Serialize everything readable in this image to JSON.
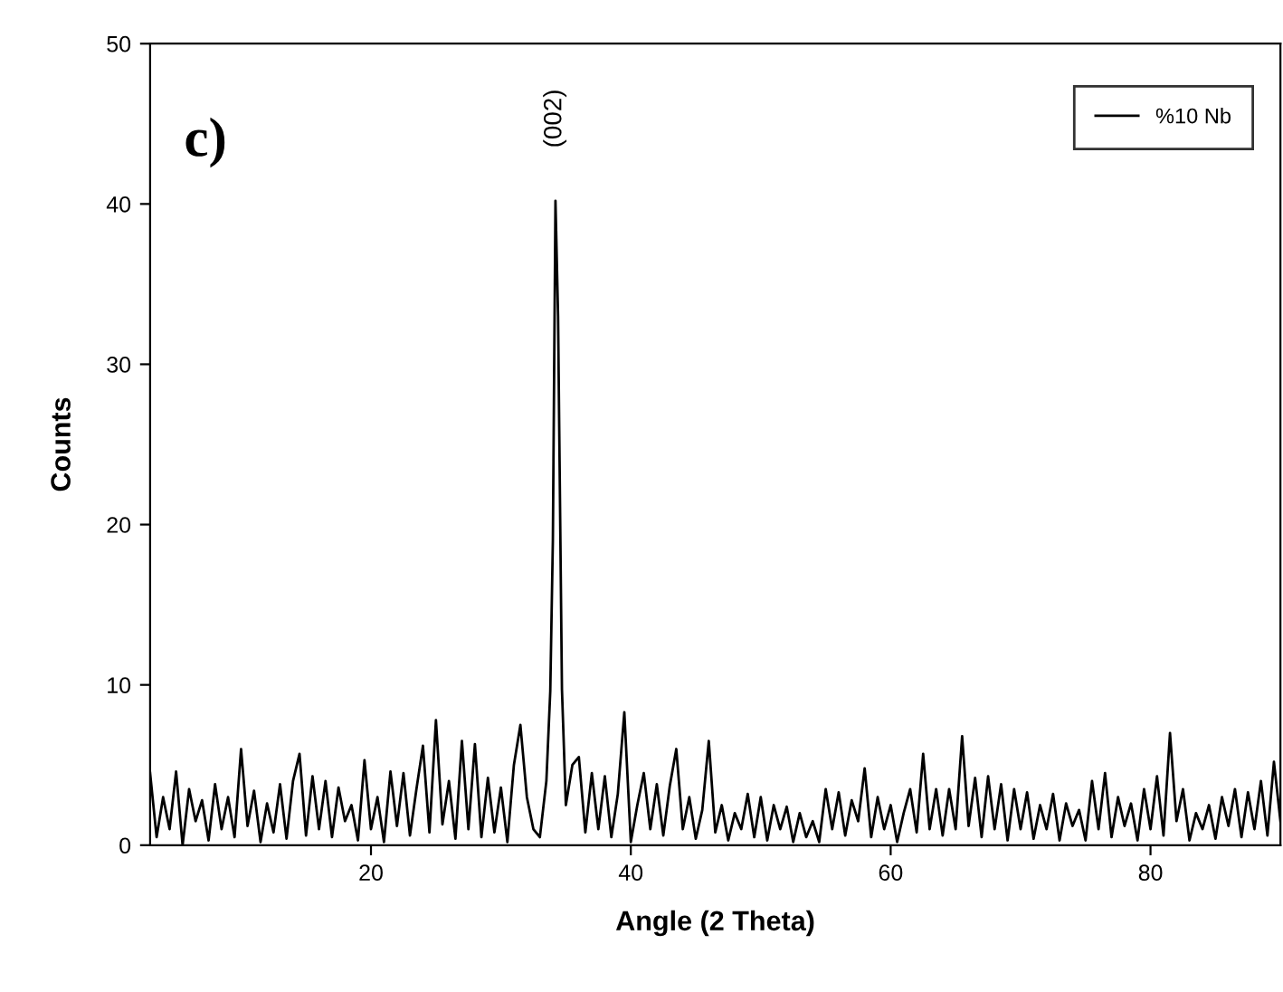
{
  "chart_data": {
    "type": "line",
    "xlabel": "Angle (2 Theta)",
    "ylabel": "Counts",
    "annotations": [
      "c)",
      "(002)"
    ],
    "xlim": [
      3,
      90
    ],
    "ylim": [
      0,
      50
    ],
    "xticks": [
      20,
      40,
      60,
      80
    ],
    "yticks": [
      0,
      10,
      20,
      30,
      40,
      50
    ],
    "grid": false,
    "legend": "top right",
    "marker": "none",
    "line_style": "solid",
    "series": [
      {
        "name": "%10 Nb",
        "color": "#000000",
        "x": [
          3,
          3.5,
          4,
          4.5,
          5,
          5.5,
          6,
          6.5,
          7,
          7.5,
          8,
          8.5,
          9,
          9.5,
          10,
          10.5,
          11,
          11.5,
          12,
          12.5,
          13,
          13.5,
          14,
          14.5,
          15,
          15.5,
          16,
          16.5,
          17,
          17.5,
          18,
          18.5,
          19,
          19.5,
          20,
          20.5,
          21,
          21.5,
          22,
          22.5,
          23,
          23.5,
          24,
          24.5,
          25,
          25.5,
          26,
          26.5,
          27,
          27.5,
          28,
          28.5,
          29,
          29.5,
          30,
          30.5,
          31,
          31.5,
          32,
          32.5,
          33,
          33.5,
          33.8,
          34.0,
          34.2,
          34.4,
          34.7,
          35,
          35.5,
          36,
          36.5,
          37,
          37.5,
          38,
          38.5,
          39,
          39.5,
          40,
          40.5,
          41,
          41.5,
          42,
          42.5,
          43,
          43.5,
          44,
          44.5,
          45,
          45.5,
          46,
          46.5,
          47,
          47.5,
          48,
          48.5,
          49,
          49.5,
          50,
          50.5,
          51,
          51.5,
          52,
          52.5,
          53,
          53.5,
          54,
          54.5,
          55,
          55.5,
          56,
          56.5,
          57,
          57.5,
          58,
          58.5,
          59,
          59.5,
          60,
          60.5,
          61,
          61.5,
          62,
          62.5,
          63,
          63.5,
          64,
          64.5,
          65,
          65.5,
          66,
          66.5,
          67,
          67.5,
          68,
          68.5,
          69,
          69.5,
          70,
          70.5,
          71,
          71.5,
          72,
          72.5,
          73,
          73.5,
          74,
          74.5,
          75,
          75.5,
          76,
          76.5,
          77,
          77.5,
          78,
          78.5,
          79,
          79.5,
          80,
          80.5,
          81,
          81.5,
          82,
          82.5,
          83,
          83.5,
          84,
          84.5,
          85,
          85.5,
          86,
          86.5,
          87,
          87.5,
          88,
          88.5,
          89,
          89.5,
          90
        ],
        "values": [
          4.5,
          0.5,
          3,
          1,
          4.6,
          0,
          3.5,
          1.5,
          2.8,
          0.3,
          3.8,
          1,
          3,
          0.5,
          6,
          1.2,
          3.4,
          0.2,
          2.6,
          0.8,
          3.8,
          0.4,
          4,
          5.7,
          0.6,
          4.3,
          1,
          4,
          0.5,
          3.6,
          1.5,
          2.5,
          0.3,
          5.3,
          1,
          3,
          0.2,
          4.6,
          1.2,
          4.5,
          0.6,
          3.5,
          6.2,
          0.8,
          7.8,
          1.3,
          4,
          0.4,
          6.5,
          1,
          6.3,
          0.5,
          4.2,
          0.8,
          3.6,
          0.2,
          5,
          7.5,
          3,
          1,
          0.5,
          4,
          9.6,
          19,
          40.2,
          33,
          9.7,
          2.5,
          5,
          5.5,
          0.8,
          4.5,
          1,
          4.3,
          0.5,
          3.2,
          8.3,
          0.2,
          2.5,
          4.5,
          1,
          3.8,
          0.6,
          3.7,
          6,
          1,
          3,
          0.4,
          2.2,
          6.5,
          0.8,
          2.5,
          0.3,
          2,
          1,
          3.2,
          0.5,
          3,
          0.3,
          2.5,
          1,
          2.4,
          0.2,
          2,
          0.5,
          1.5,
          0.2,
          3.5,
          1,
          3.3,
          0.6,
          2.8,
          1.5,
          4.8,
          0.5,
          3,
          1,
          2.5,
          0.2,
          2,
          3.5,
          0.8,
          5.7,
          1,
          3.5,
          0.6,
          3.5,
          1,
          6.8,
          1.2,
          4.2,
          0.5,
          4.3,
          1,
          3.8,
          0.3,
          3.5,
          1,
          3.3,
          0.4,
          2.5,
          1,
          3.2,
          0.3,
          2.6,
          1.2,
          2.2,
          0.3,
          4,
          1,
          4.5,
          0.5,
          3,
          1.2,
          2.6,
          0.3,
          3.5,
          1,
          4.3,
          0.6,
          7,
          1.5,
          3.5,
          0.3,
          2,
          1,
          2.5,
          0.4,
          3,
          1.2,
          3.5,
          0.5,
          3.3,
          1,
          4,
          0.6,
          5.2,
          1.5
        ]
      }
    ]
  }
}
